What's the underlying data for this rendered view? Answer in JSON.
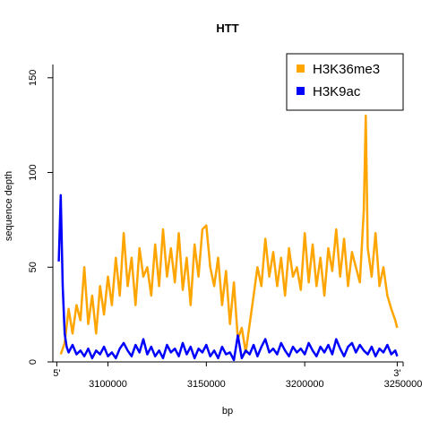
{
  "chart_data": {
    "type": "line",
    "title": "HTT",
    "xlabel": "bp",
    "ylabel": "sequence depth",
    "xlim": [
      3072000,
      3250000
    ],
    "ylim": [
      0,
      157
    ],
    "x_ticks": [
      3100000,
      3150000,
      3200000,
      3250000
    ],
    "x_tick_labels": [
      "3100000",
      "3150000",
      "3200000",
      "3250000"
    ],
    "y_ticks": [
      0,
      50,
      100,
      150
    ],
    "y_tick_labels": [
      "0",
      "50",
      "100",
      "150"
    ],
    "annotations": [
      {
        "text": "5'",
        "x": 3074000
      },
      {
        "text": "3'",
        "x": 3247000
      }
    ],
    "legend": {
      "position": "top-right"
    },
    "grid": false,
    "series": [
      {
        "name": "H3K36me3",
        "color": "#ffa500",
        "x": [
          3076000,
          3078000,
          3080000,
          3082000,
          3084000,
          3086000,
          3088000,
          3090000,
          3092000,
          3094000,
          3096000,
          3098000,
          3100000,
          3102000,
          3104000,
          3106000,
          3108000,
          3110000,
          3112000,
          3114000,
          3116000,
          3118000,
          3120000,
          3122000,
          3124000,
          3126000,
          3128000,
          3130000,
          3132000,
          3134000,
          3136000,
          3138000,
          3140000,
          3142000,
          3144000,
          3146000,
          3148000,
          3150000,
          3152000,
          3154000,
          3156000,
          3158000,
          3160000,
          3162000,
          3164000,
          3166000,
          3168000,
          3170000,
          3172000,
          3174000,
          3176000,
          3178000,
          3180000,
          3182000,
          3184000,
          3186000,
          3188000,
          3190000,
          3192000,
          3194000,
          3196000,
          3198000,
          3200000,
          3202000,
          3204000,
          3206000,
          3208000,
          3210000,
          3212000,
          3214000,
          3216000,
          3218000,
          3220000,
          3222000,
          3224000,
          3226000,
          3228000,
          3230000,
          3231000,
          3232000,
          3234000,
          3236000,
          3238000,
          3240000,
          3242000,
          3244000,
          3246000,
          3247000
        ],
        "values": [
          4,
          10,
          28,
          15,
          30,
          22,
          50,
          20,
          35,
          15,
          40,
          25,
          45,
          30,
          55,
          35,
          68,
          40,
          55,
          30,
          60,
          45,
          50,
          35,
          62,
          40,
          70,
          45,
          60,
          42,
          68,
          38,
          55,
          30,
          62,
          45,
          70,
          72,
          50,
          40,
          55,
          30,
          48,
          20,
          42,
          12,
          18,
          5,
          20,
          35,
          50,
          40,
          65,
          45,
          58,
          40,
          55,
          35,
          60,
          45,
          50,
          38,
          68,
          42,
          62,
          40,
          55,
          35,
          60,
          48,
          70,
          45,
          65,
          40,
          58,
          50,
          42,
          80,
          130,
          60,
          45,
          68,
          40,
          50,
          35,
          28,
          22,
          18
        ]
      },
      {
        "name": "H3K9ac",
        "color": "#0000ff",
        "x": [
          3075000,
          3076000,
          3077000,
          3078000,
          3079000,
          3080000,
          3082000,
          3084000,
          3086000,
          3088000,
          3090000,
          3092000,
          3094000,
          3096000,
          3098000,
          3100000,
          3102000,
          3104000,
          3106000,
          3108000,
          3110000,
          3112000,
          3114000,
          3116000,
          3118000,
          3120000,
          3122000,
          3124000,
          3126000,
          3128000,
          3130000,
          3132000,
          3134000,
          3136000,
          3138000,
          3140000,
          3142000,
          3144000,
          3146000,
          3148000,
          3150000,
          3152000,
          3154000,
          3156000,
          3158000,
          3160000,
          3162000,
          3164000,
          3166000,
          3168000,
          3170000,
          3172000,
          3174000,
          3176000,
          3178000,
          3180000,
          3182000,
          3184000,
          3186000,
          3188000,
          3190000,
          3192000,
          3194000,
          3196000,
          3198000,
          3200000,
          3202000,
          3204000,
          3206000,
          3208000,
          3210000,
          3212000,
          3214000,
          3216000,
          3218000,
          3220000,
          3222000,
          3224000,
          3226000,
          3228000,
          3230000,
          3232000,
          3234000,
          3236000,
          3238000,
          3240000,
          3242000,
          3244000,
          3246000,
          3247000
        ],
        "values": [
          53,
          88,
          40,
          15,
          8,
          5,
          9,
          4,
          6,
          3,
          7,
          2,
          6,
          4,
          8,
          3,
          5,
          2,
          7,
          10,
          6,
          3,
          9,
          5,
          12,
          4,
          8,
          3,
          6,
          2,
          9,
          5,
          7,
          3,
          10,
          4,
          8,
          2,
          7,
          5,
          9,
          3,
          6,
          2,
          8,
          4,
          5,
          1,
          14,
          2,
          6,
          4,
          9,
          3,
          8,
          12,
          5,
          7,
          4,
          10,
          6,
          3,
          8,
          5,
          7,
          4,
          10,
          6,
          3,
          8,
          5,
          9,
          4,
          12,
          7,
          3,
          8,
          10,
          5,
          9,
          6,
          4,
          8,
          3,
          7,
          5,
          9,
          4,
          6,
          3
        ]
      }
    ]
  }
}
